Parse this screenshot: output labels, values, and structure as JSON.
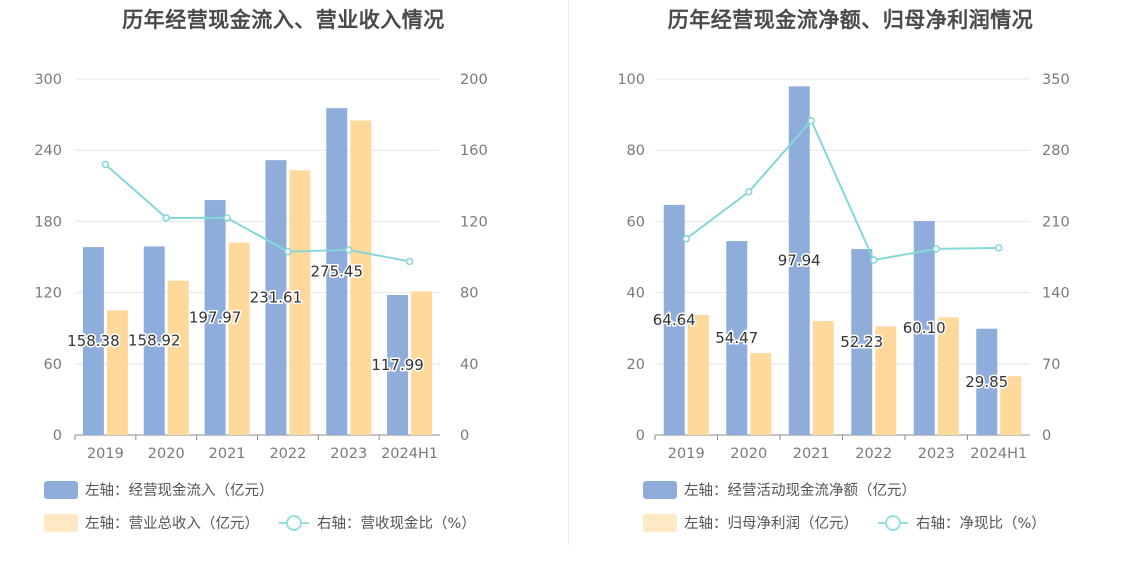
{
  "chart_data": [
    {
      "type": "bar+line",
      "title": "历年经营现金流入、营业收入情况",
      "categories": [
        "2019",
        "2020",
        "2021",
        "2022",
        "2023",
        "2024H1"
      ],
      "y_left": {
        "ylim": [
          0,
          300
        ],
        "ticks": [
          "0",
          "60",
          "120",
          "180",
          "240",
          "300"
        ]
      },
      "y_right": {
        "ylim": [
          0,
          200
        ],
        "ticks": [
          "0",
          "40",
          "80",
          "120",
          "160",
          "200"
        ]
      },
      "series": [
        {
          "name": "左轴：经营现金流入（亿元）",
          "kind": "bar",
          "axis": "left",
          "color": "#8eadda",
          "values": [
            158.38,
            158.92,
            197.97,
            231.61,
            275.45,
            117.99
          ],
          "labels": [
            "158.38",
            "158.92",
            "197.97",
            "231.61",
            "275.45",
            "117.99"
          ]
        },
        {
          "name": "左轴：营业总收入（亿元）",
          "kind": "bar",
          "axis": "left",
          "color": "#ffd89b",
          "values": [
            105,
            130,
            162,
            223,
            265,
            121
          ]
        },
        {
          "name": "右轴：营收现金比（%）",
          "kind": "line",
          "axis": "right",
          "color": "#86d7d9",
          "values": [
            152,
            122,
            122,
            103,
            104,
            97.5
          ]
        }
      ],
      "legend_rows": [
        [
          "左轴：经营现金流入（亿元）"
        ],
        [
          "左轴：营业总收入（亿元）",
          "右轴：营收现金比（%）"
        ]
      ]
    },
    {
      "type": "bar+line",
      "title": "历年经营现金流净额、归母净利润情况",
      "categories": [
        "2019",
        "2020",
        "2021",
        "2022",
        "2023",
        "2024H1"
      ],
      "y_left": {
        "ylim": [
          0,
          100
        ],
        "ticks": [
          "0",
          "20",
          "40",
          "60",
          "80",
          "100"
        ]
      },
      "y_right": {
        "ylim": [
          0,
          350
        ],
        "ticks": [
          "0",
          "70",
          "140",
          "210",
          "280",
          "350"
        ]
      },
      "series": [
        {
          "name": "左轴：经营活动现金流净额（亿元）",
          "kind": "bar",
          "axis": "left",
          "color": "#8eadda",
          "values": [
            64.64,
            54.47,
            97.94,
            52.23,
            60.1,
            29.85
          ],
          "labels": [
            "64.64",
            "54.47",
            "97.94",
            "52.23",
            "60.10",
            "29.85"
          ]
        },
        {
          "name": "左轴：归母净利润（亿元）",
          "kind": "bar",
          "axis": "left",
          "color": "#ffd89b",
          "values": [
            33.7,
            23,
            32,
            30.5,
            33,
            16.5
          ]
        },
        {
          "name": "右轴：净现比（%）",
          "kind": "line",
          "axis": "right",
          "color": "#86d7d9",
          "values": [
            193,
            239,
            309,
            172,
            183,
            184
          ]
        }
      ],
      "legend_rows": [
        [
          "左轴：经营活动现金流净额（亿元）"
        ],
        [
          "左轴：归母净利润（亿元）",
          "右轴：净现比（%）"
        ]
      ]
    }
  ]
}
